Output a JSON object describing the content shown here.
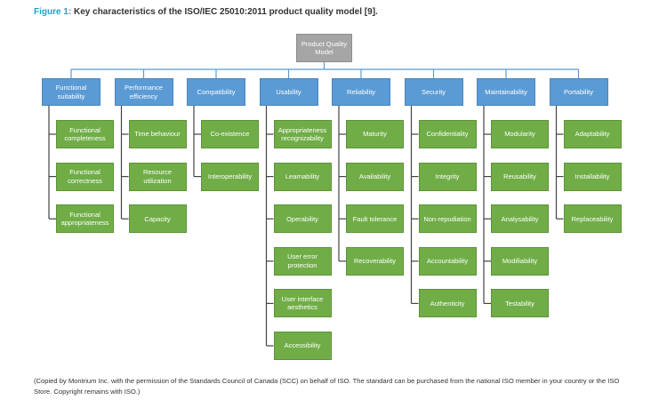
{
  "figure_label": "Figure 1:",
  "title": "Key characteristics of the ISO/IEC 25010:2011 product quality model [9].",
  "root": {
    "label": "Product Quality Model"
  },
  "characteristics": [
    {
      "name": "Functional suitability",
      "subcharacteristics": [
        "Functional completeness",
        "Functional correctness",
        "Functional appropriateness"
      ]
    },
    {
      "name": "Performance efficiency",
      "subcharacteristics": [
        "Time behaviour",
        "Resource utilization",
        "Capacity"
      ]
    },
    {
      "name": "Compatibility",
      "subcharacteristics": [
        "Co-existence",
        "Interoperability"
      ]
    },
    {
      "name": "Usability",
      "subcharacteristics": [
        "Appropriateness recognizability",
        "Learnability",
        "Operability",
        "User error protection",
        "User interface aesthetics",
        "Accessibility"
      ]
    },
    {
      "name": "Reliability",
      "subcharacteristics": [
        "Maturity",
        "Availability",
        "Fault tolerance",
        "Recoverability"
      ]
    },
    {
      "name": "Security",
      "subcharacteristics": [
        "Confidentiality",
        "Integrity",
        "Non-repudiation",
        "Accountability",
        "Authenticity"
      ]
    },
    {
      "name": "Maintainability",
      "subcharacteristics": [
        "Modularity",
        "Reusability",
        "Analysability",
        "Modifiability",
        "Testability"
      ]
    },
    {
      "name": "Portability",
      "subcharacteristics": [
        "Adaptability",
        "Installability",
        "Replaceability"
      ]
    }
  ],
  "footnote": "(Copied by Montrium Inc. with the permission of the Standards Council of Canada (SCC) on behalf of ISO. The standard can be purchased from the national ISO member in your country or the ISO Store. Copyright remains with ISO.)"
}
